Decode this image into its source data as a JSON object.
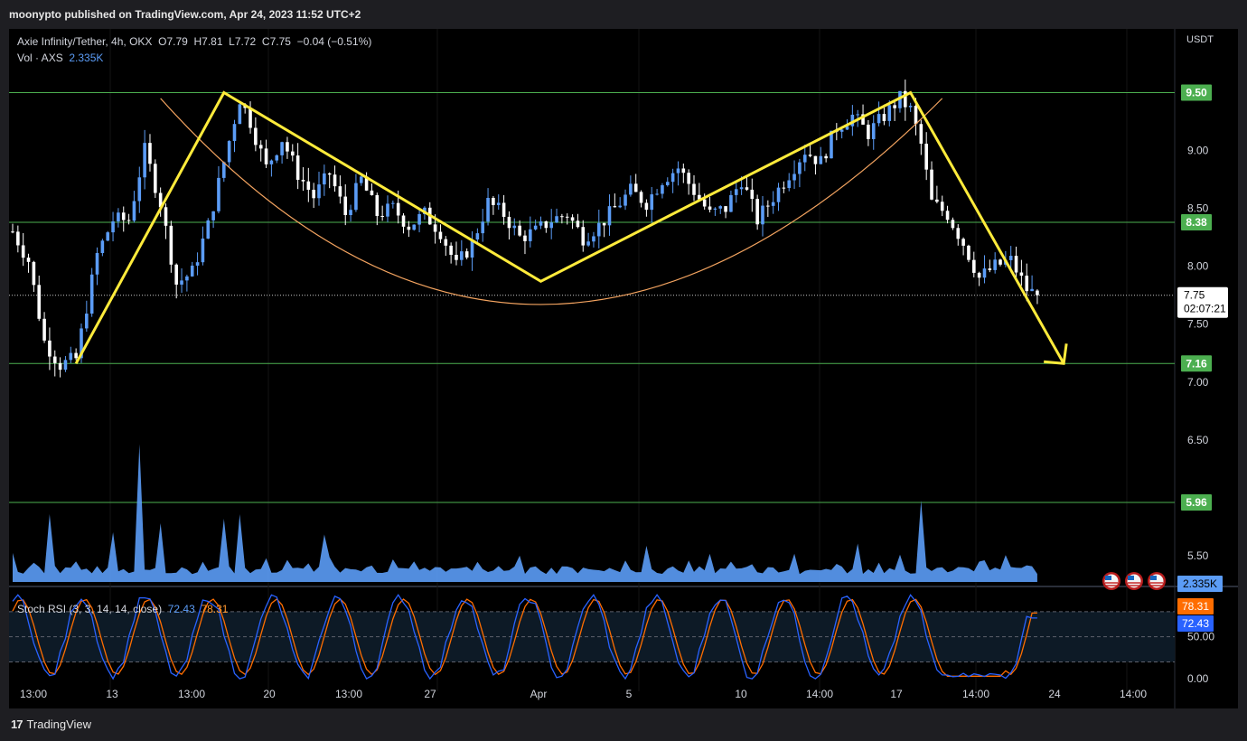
{
  "header": {
    "text": "moonypto published on TradingView.com, Apr 24, 2023 11:52 UTC+2"
  },
  "legend": {
    "symbol": "Axie Infinity/Tether, 4h, OKX",
    "o_label": "O",
    "o": "7.79",
    "h_label": "H",
    "h": "7.81",
    "l_label": "L",
    "l": "7.72",
    "c_label": "C",
    "c": "7.75",
    "change": "−0.04 (−0.51%)",
    "vol_label": "Vol · AXS",
    "vol_value": "2.335K"
  },
  "stoch": {
    "label": "Stoch RSI (3, 3, 14, 14, close)",
    "k_value": "72.43",
    "d_value": "78.31",
    "axis_ticks": [
      "50.00",
      "0.00"
    ],
    "k_tag": "72.43",
    "d_tag": "78.31"
  },
  "price_axis": {
    "unit": "USDT",
    "ticks": [
      "9.00",
      "8.50",
      "8.00",
      "7.50",
      "7.00",
      "6.50",
      "5.50"
    ],
    "current_price": "7.75",
    "countdown": "02:07:21",
    "volume_tag": "2.335K"
  },
  "levels": [
    {
      "label": "9.50",
      "value": 9.5
    },
    {
      "label": "8.38",
      "value": 8.38
    },
    {
      "label": "7.16",
      "value": 7.16
    },
    {
      "label": "5.96",
      "value": 5.96
    }
  ],
  "time_axis": {
    "ticks": [
      "13:00",
      "13",
      "13:00",
      "20",
      "13:00",
      "27",
      "Apr",
      "5",
      "10",
      "14:00",
      "17",
      "14:00",
      "24",
      "14:00"
    ]
  },
  "footer": {
    "brand": "TradingView"
  },
  "colors": {
    "background": "#000000",
    "level_line": "#4caf50",
    "level_tag": "#4caf50",
    "candle_up": "#5b9cf6",
    "candle_down": "#ffffff",
    "volume": "#5b9cf6",
    "pattern_line": "#ffeb3b",
    "arc": "#f4a460",
    "stoch_k": "#2962ff",
    "stoch_d": "#ff6d00"
  },
  "chart_data": {
    "type": "candlestick",
    "title": "Axie Infinity/Tether, 4h, OKX",
    "ylabel": "USDT",
    "ylim": [
      5.25,
      10.05
    ],
    "close_path": [
      [
        0,
        8.3
      ],
      [
        3,
        8.05
      ],
      [
        6,
        7.35
      ],
      [
        9,
        7.15
      ],
      [
        12,
        7.2
      ],
      [
        16,
        8.1
      ],
      [
        19,
        8.4
      ],
      [
        22,
        8.4
      ],
      [
        25,
        9.0
      ],
      [
        28,
        8.55
      ],
      [
        31,
        7.85
      ],
      [
        34,
        7.95
      ],
      [
        37,
        8.35
      ],
      [
        40,
        8.9
      ],
      [
        43,
        9.45
      ],
      [
        45,
        9.25
      ],
      [
        48,
        8.85
      ],
      [
        51,
        9.1
      ],
      [
        54,
        8.8
      ],
      [
        57,
        8.6
      ],
      [
        60,
        8.8
      ],
      [
        63,
        8.45
      ],
      [
        66,
        8.75
      ],
      [
        69,
        8.45
      ],
      [
        72,
        8.5
      ],
      [
        75,
        8.35
      ],
      [
        78,
        8.45
      ],
      [
        81,
        8.3
      ],
      [
        84,
        8.0
      ],
      [
        87,
        8.2
      ],
      [
        90,
        8.55
      ],
      [
        93,
        8.45
      ],
      [
        96,
        8.25
      ],
      [
        99,
        8.3
      ],
      [
        102,
        8.4
      ],
      [
        105,
        8.45
      ],
      [
        108,
        8.25
      ],
      [
        111,
        8.35
      ],
      [
        114,
        8.5
      ],
      [
        117,
        8.65
      ],
      [
        120,
        8.55
      ],
      [
        123,
        8.75
      ],
      [
        126,
        8.85
      ],
      [
        129,
        8.65
      ],
      [
        132,
        8.45
      ],
      [
        135,
        8.5
      ],
      [
        138,
        8.75
      ],
      [
        141,
        8.4
      ],
      [
        144,
        8.6
      ],
      [
        147,
        8.8
      ],
      [
        150,
        9.0
      ],
      [
        153,
        8.9
      ],
      [
        156,
        9.2
      ],
      [
        159,
        9.3
      ],
      [
        162,
        9.15
      ],
      [
        165,
        9.3
      ],
      [
        168,
        9.45
      ],
      [
        170,
        9.35
      ],
      [
        172,
        9.05
      ],
      [
        174,
        8.55
      ],
      [
        177,
        8.45
      ],
      [
        180,
        8.2
      ],
      [
        183,
        7.9
      ],
      [
        186,
        8.0
      ],
      [
        189,
        8.05
      ],
      [
        192,
        7.8
      ],
      [
        194,
        7.75
      ]
    ],
    "volume_spikes": [
      [
        7,
        3.0
      ],
      [
        19,
        2.2
      ],
      [
        24,
        6.1
      ],
      [
        28,
        2.6
      ],
      [
        40,
        2.8
      ],
      [
        43,
        3.0
      ],
      [
        59,
        2.1
      ],
      [
        120,
        1.6
      ],
      [
        160,
        1.7
      ],
      [
        172,
        3.6
      ],
      [
        183,
        0.9
      ]
    ],
    "pattern_lines": [
      {
        "name": "pattern",
        "points": [
          [
            12,
            7.16
          ],
          [
            40,
            9.5
          ],
          [
            100,
            7.87
          ],
          [
            170,
            9.5
          ],
          [
            199,
            7.16
          ]
        ]
      }
    ],
    "arc": {
      "from": [
        28,
        9.45
      ],
      "bottom": [
        100,
        7.67
      ],
      "to": [
        176,
        9.45
      ]
    },
    "stoch_k_last": 72.43,
    "stoch_d_last": 78.31,
    "stoch_ylim": [
      -15,
      110
    ]
  }
}
